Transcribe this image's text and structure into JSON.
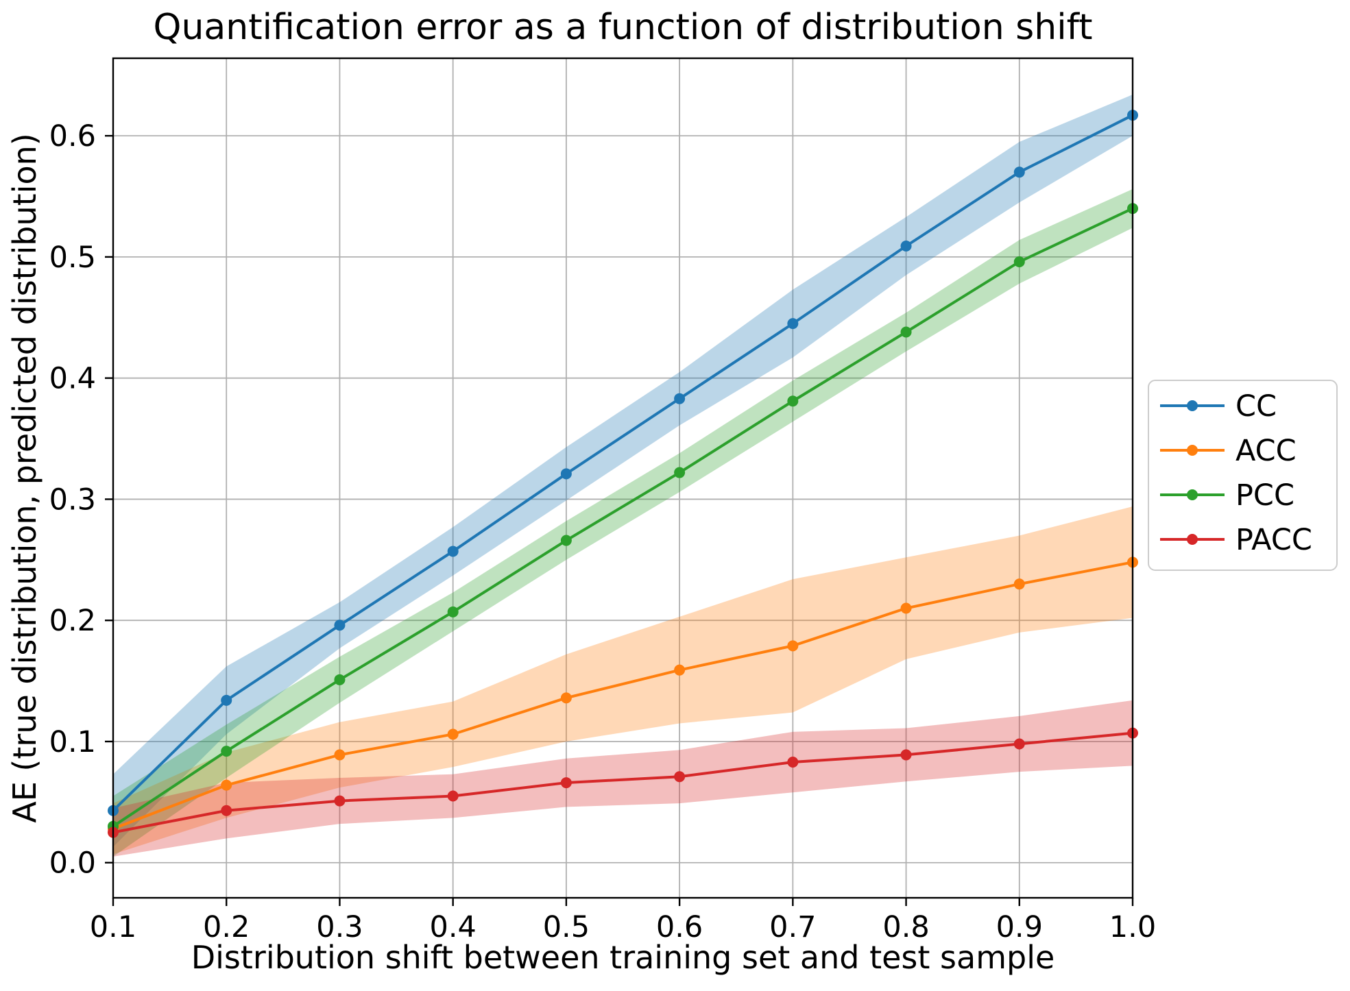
{
  "page": {
    "background": "#ffffff"
  },
  "chart_data": {
    "type": "line",
    "title": "Quantification error as a function of distribution shift",
    "xlabel": "Distribution shift between training set and test sample",
    "ylabel": "AE (true distribution, predicted distribution)",
    "x": [
      0.1,
      0.2,
      0.3,
      0.4,
      0.5,
      0.6,
      0.7,
      0.8,
      0.9,
      1.0
    ],
    "xlim": [
      0.1,
      1.0
    ],
    "ylim": [
      -0.029,
      0.664
    ],
    "xtick_labels": [
      "0.1",
      "0.2",
      "0.3",
      "0.4",
      "0.5",
      "0.6",
      "0.7",
      "0.8",
      "0.9",
      "1.0"
    ],
    "ytick_labels": [
      "0.0",
      "0.1",
      "0.2",
      "0.3",
      "0.4",
      "0.5",
      "0.6"
    ],
    "grid": true,
    "legend": {
      "position": "right-outside",
      "entries": [
        "CC",
        "ACC",
        "PCC",
        "PACC"
      ]
    },
    "colors": {
      "grid": "#b0b0b0",
      "spine": "#000000",
      "text": "#000000",
      "legend_border": "#cccccc"
    },
    "band_opacity": 0.3,
    "series": [
      {
        "name": "CC",
        "color": "#1f77b4",
        "values": [
          0.043,
          0.134,
          0.196,
          0.257,
          0.321,
          0.383,
          0.445,
          0.509,
          0.57,
          0.617
        ],
        "band_halfwidth": [
          0.03,
          0.028,
          0.019,
          0.02,
          0.022,
          0.022,
          0.028,
          0.024,
          0.025,
          0.017
        ]
      },
      {
        "name": "ACC",
        "color": "#ff7f0e",
        "values": [
          0.028,
          0.064,
          0.089,
          0.106,
          0.136,
          0.159,
          0.179,
          0.21,
          0.23,
          0.248
        ],
        "band_halfwidth": [
          0.021,
          0.027,
          0.027,
          0.027,
          0.036,
          0.044,
          0.055,
          0.042,
          0.04,
          0.046
        ]
      },
      {
        "name": "PCC",
        "color": "#2ca02c",
        "values": [
          0.03,
          0.092,
          0.151,
          0.207,
          0.266,
          0.322,
          0.381,
          0.438,
          0.496,
          0.54
        ],
        "band_halfwidth": [
          0.025,
          0.022,
          0.019,
          0.016,
          0.016,
          0.016,
          0.017,
          0.016,
          0.018,
          0.016
        ]
      },
      {
        "name": "PACC",
        "color": "#d62728",
        "values": [
          0.025,
          0.043,
          0.051,
          0.055,
          0.066,
          0.071,
          0.083,
          0.089,
          0.098,
          0.107
        ],
        "band_halfwidth": [
          0.02,
          0.023,
          0.019,
          0.018,
          0.02,
          0.022,
          0.025,
          0.022,
          0.023,
          0.027
        ]
      }
    ]
  }
}
